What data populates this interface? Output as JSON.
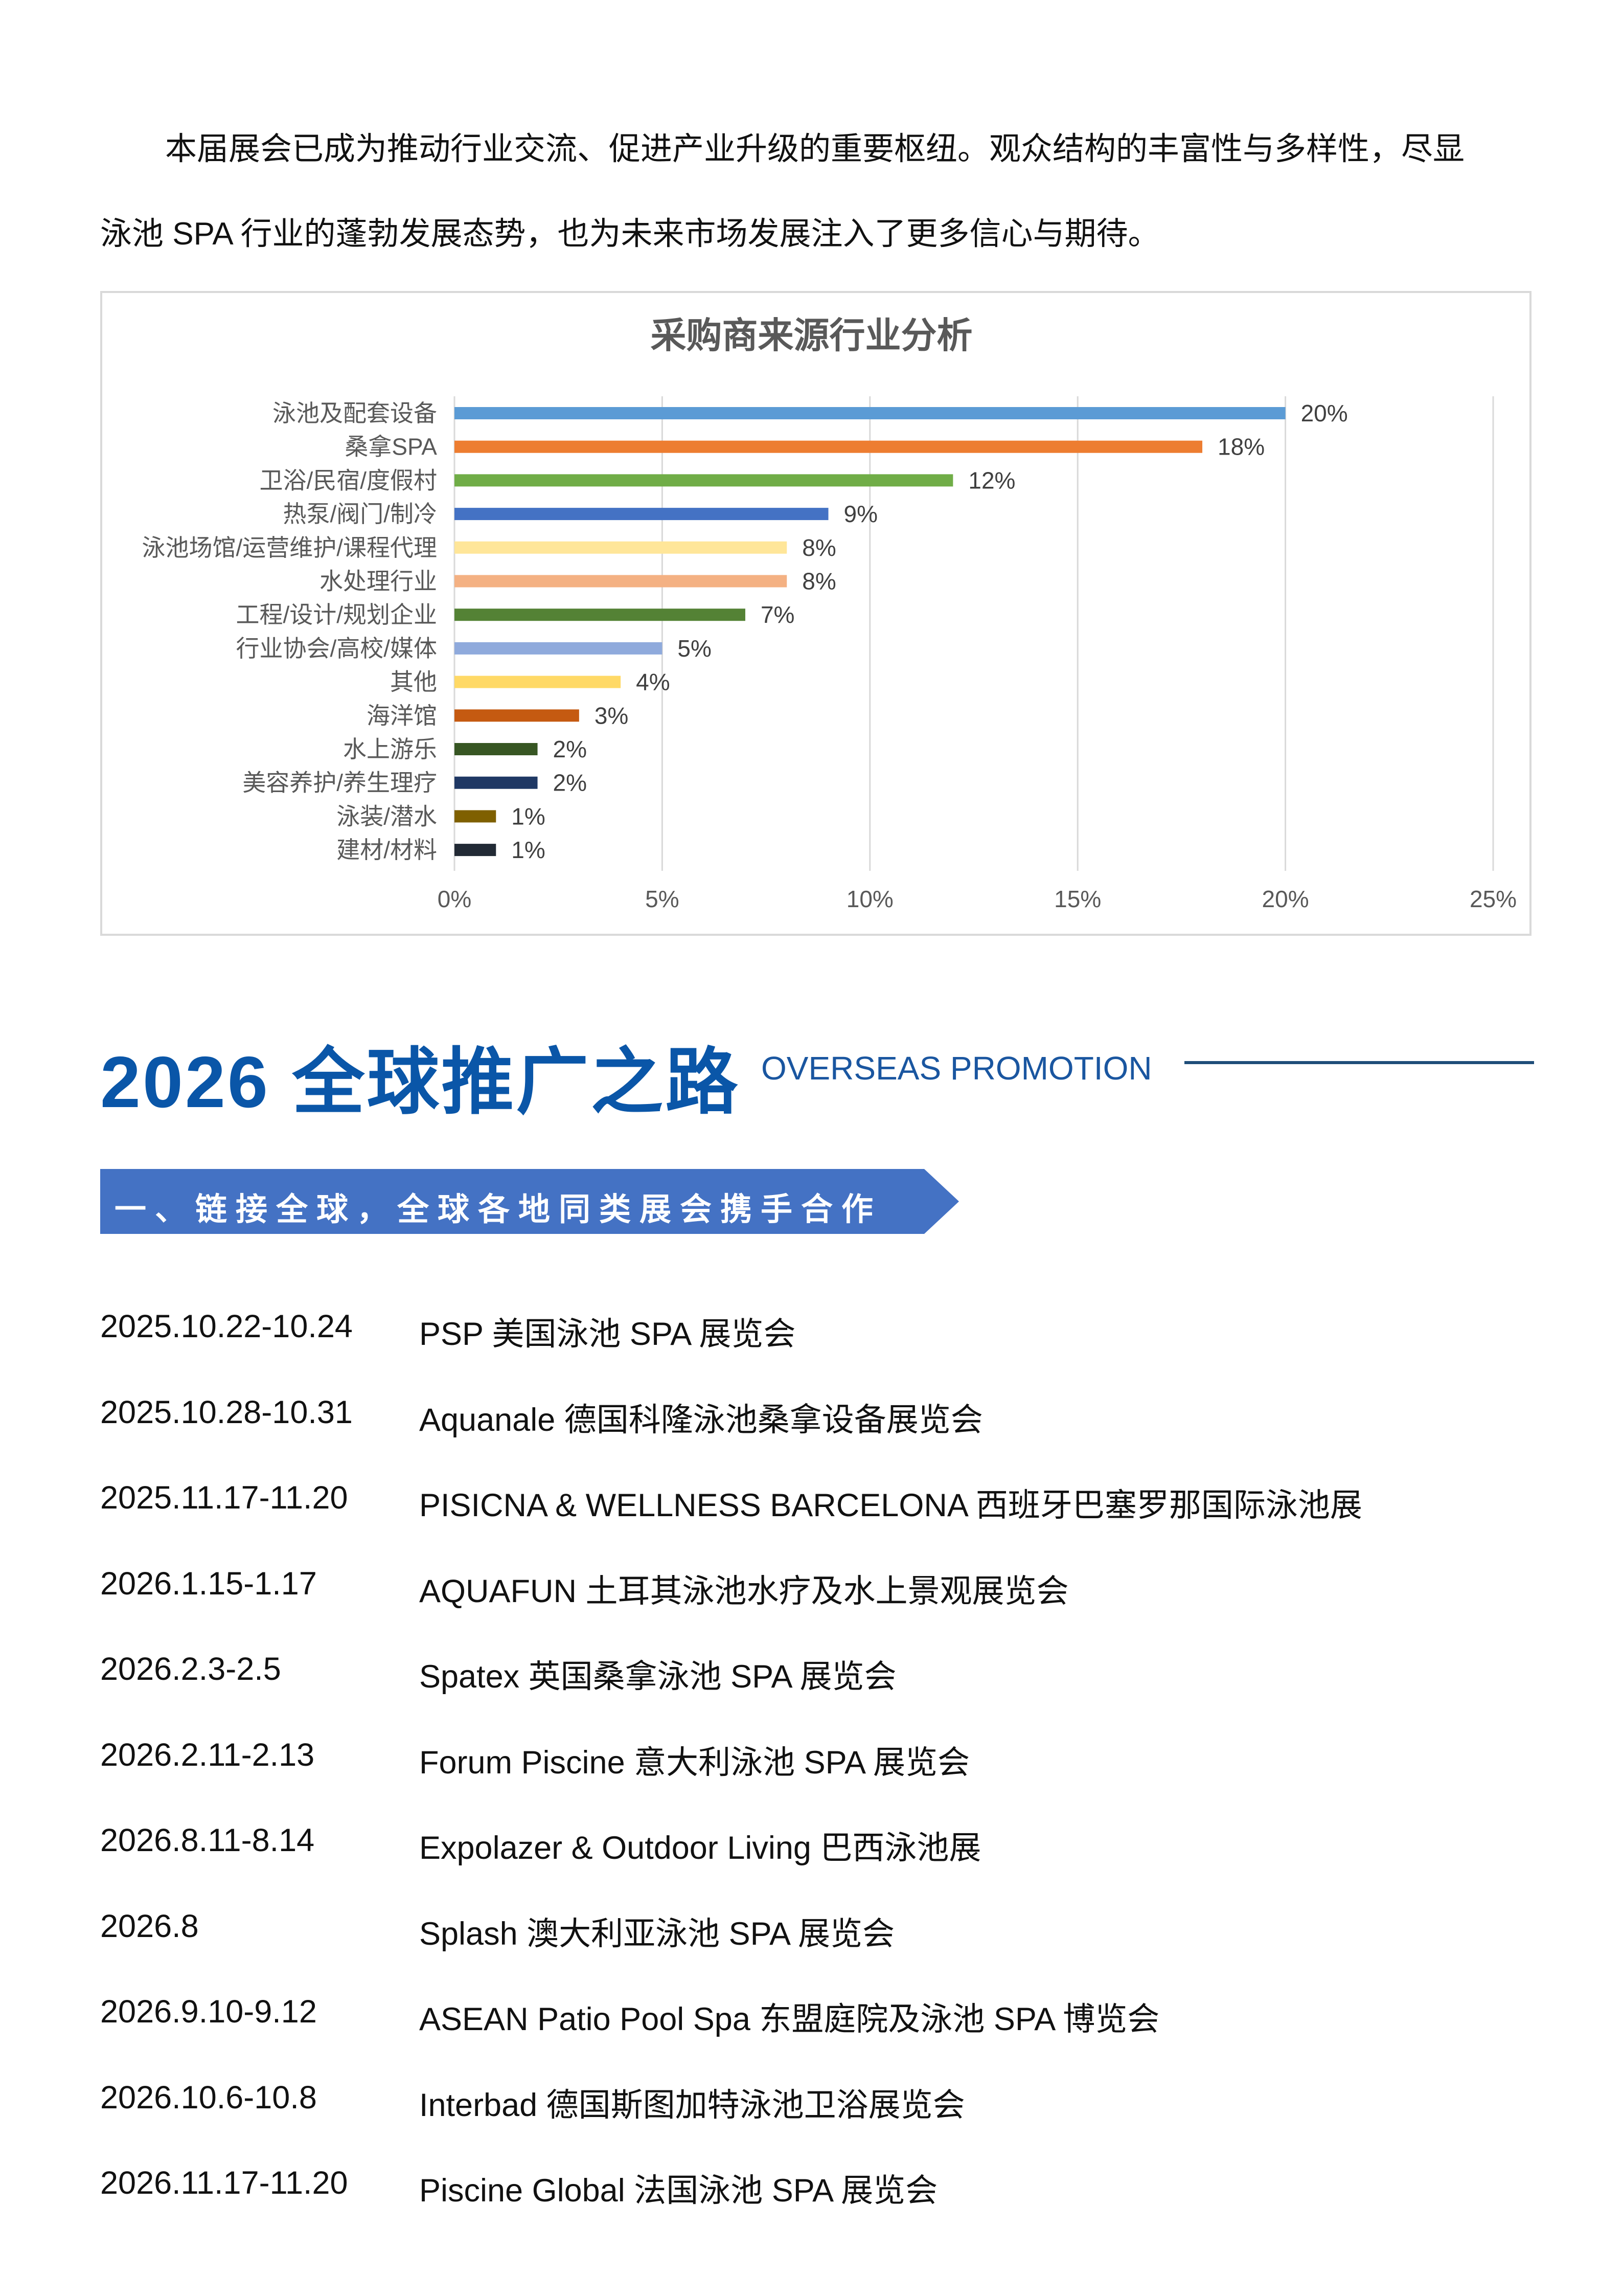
{
  "intro": {
    "line1": "本届展会已成为推动行业交流、促进产业升级的重要枢纽。观众结构的丰富性与多样性，尽显",
    "line2": "泳池 SPA 行业的蓬勃发展态势，也为未来市场发展注入了更多信心与期待。"
  },
  "chart_data": {
    "type": "bar",
    "orientation": "horizontal",
    "title": "采购商来源行业分析",
    "categories": [
      "泳池及配套设备",
      "桑拿SPA",
      "卫浴/民宿/度假村",
      "热泵/阀门/制冷",
      "泳池场馆/运营维护/课程代理",
      "水处理行业",
      "工程/设计/规划企业",
      "行业协会/高校/媒体",
      "其他",
      "海洋馆",
      "水上游乐",
      "美容养护/养生理疗",
      "泳装/潜水",
      "建材/材料"
    ],
    "values": [
      20,
      18,
      12,
      9,
      8,
      8,
      7,
      5,
      4,
      3,
      2,
      2,
      1,
      1
    ],
    "data_labels": [
      "20%",
      "18%",
      "12%",
      "9%",
      "8%",
      "8%",
      "7%",
      "5%",
      "4%",
      "3%",
      "2%",
      "2%",
      "1%",
      "1%"
    ],
    "colors": [
      "#5b9bd5",
      "#ed7d31",
      "#70ad47",
      "#4472c4",
      "#ffe699",
      "#f4b183",
      "#548235",
      "#8faadc",
      "#ffd966",
      "#c55a11",
      "#375623",
      "#1f3864",
      "#7f6000",
      "#222a35"
    ],
    "xlim": [
      0,
      25
    ],
    "xticks": [
      "0%",
      "5%",
      "10%",
      "15%",
      "20%",
      "25%"
    ],
    "grid": true,
    "xlabel": "",
    "ylabel": ""
  },
  "section": {
    "title": "2026 全球推广之路",
    "subtitle": "OVERSEAS PROMOTION",
    "banner": "一、链接全球，全球各地同类展会携手合作"
  },
  "events": [
    {
      "date": "2025.10.22-10.24",
      "name": "PSP  美国泳池 SPA 展览会"
    },
    {
      "date": "2025.10.28-10.31",
      "name": "Aquanale 德国科隆泳池桑拿设备展览会"
    },
    {
      "date": "2025.11.17-11.20",
      "name": "PISICNA & WELLNESS BARCELONA 西班牙巴塞罗那国际泳池展"
    },
    {
      "date": "2026.1.15-1.17",
      "name": "AQUAFUN 土耳其泳池水疗及水上景观展览会"
    },
    {
      "date": "2026.2.3-2.5",
      "name": "Spatex 英国桑拿泳池 SPA 展览会"
    },
    {
      "date": "2026.2.11-2.13",
      "name": "Forum Piscine  意大利泳池 SPA 展览会"
    },
    {
      "date": "2026.8.11-8.14",
      "name": "Expolazer & Outdoor Living  巴西泳池展"
    },
    {
      "date": "2026.8",
      "name": "Splash  澳大利亚泳池 SPA 展览会"
    },
    {
      "date": "2026.9.10-9.12",
      "name": "ASEAN Patio Pool Spa 东盟庭院及泳池 SPA 博览会"
    },
    {
      "date": "2026.10.6-10.8",
      "name": "Interbad  德国斯图加特泳池卫浴展览会"
    },
    {
      "date": "2026.11.17-11.20",
      "name": "Piscine Global  法国泳池 SPA 展览会"
    }
  ]
}
